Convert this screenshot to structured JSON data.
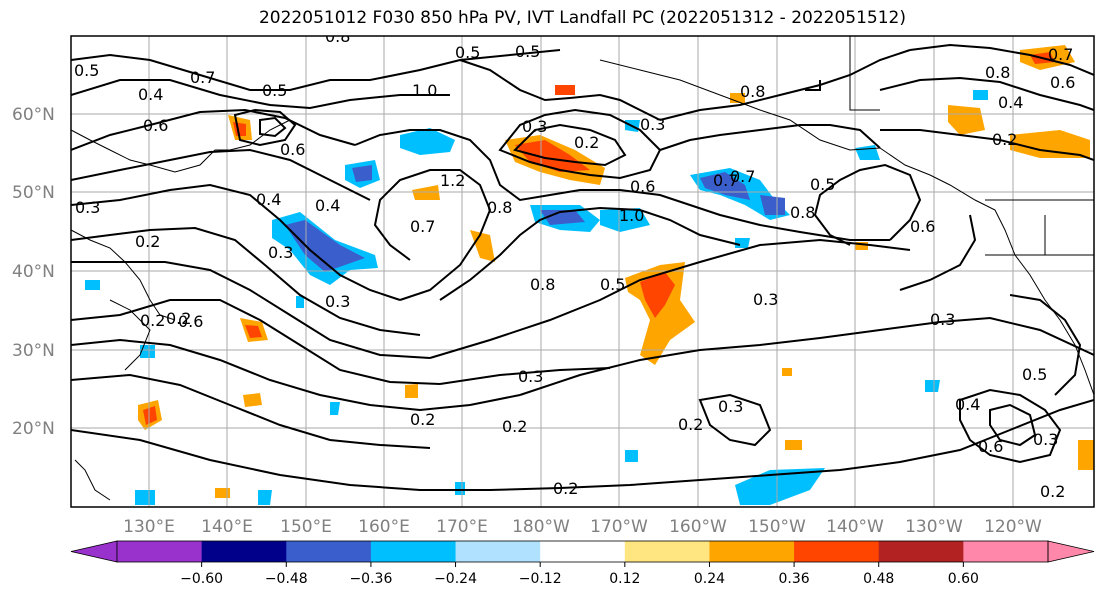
{
  "title": "2022051012 F030 850 hPa PV, IVT Landfall PC (2022051312 - 2022051512)",
  "latitude_labels": [
    "60°N",
    "50°N",
    "40°N",
    "30°N",
    "20°N"
  ],
  "longitude_labels": [
    "130°E",
    "140°E",
    "150°E",
    "160°E",
    "170°E",
    "180°W",
    "170°W",
    "160°W",
    "150°W",
    "140°W",
    "130°W",
    "120°W"
  ],
  "pv_contour_labels": [
    "0.5",
    "0.7",
    "0.5",
    "0.8",
    "0.4",
    "0.6",
    "1.0",
    "0.3",
    "0.2",
    "0.6",
    "0.2",
    "0.3",
    "0.4",
    "0.2",
    "0.5",
    "0.5",
    "0.8",
    "0.4",
    "0.7",
    "0.7",
    "0.8",
    "1.2",
    "1.0",
    "0.8",
    "0.6",
    "0.3",
    "0.3",
    "0.6",
    "0.7",
    "0.5",
    "0.6",
    "0.8",
    "0.5",
    "0.3",
    "0.3",
    "0.3",
    "0.2",
    "0.2",
    "0.2",
    "0.3",
    "0.2",
    "0.2",
    "0.3",
    "0.4",
    "0.6",
    "0.5",
    "0.3",
    "0.2",
    "0.7",
    "0.4",
    "0.2",
    "0.6",
    "0.8"
  ],
  "colorbar": {
    "tick_labels": [
      "−0.60",
      "−0.48",
      "−0.36",
      "−0.24",
      "−0.12",
      "0.12",
      "0.24",
      "0.36",
      "0.48",
      "0.60"
    ],
    "colors": [
      "#9932cc",
      "#00008b",
      "#3a5fcd",
      "#00bfff",
      "#b0e2ff",
      "#ffffff",
      "#ffe680",
      "#ffa500",
      "#ff4500",
      "#b22222",
      "#ff88aa"
    ],
    "extend": "both"
  },
  "colors": {
    "contour": "#000000",
    "coast": "#000000",
    "grid": "#aaaaaa",
    "axis_label": "#808080"
  }
}
